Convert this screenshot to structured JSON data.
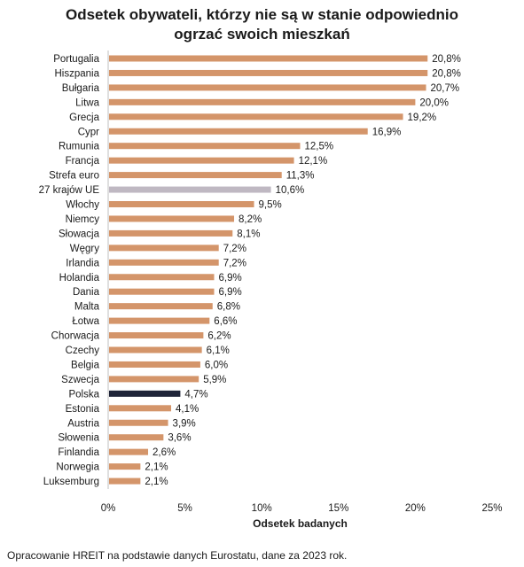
{
  "chart_data": {
    "type": "bar",
    "orientation": "horizontal",
    "title_line1": "Odsetek obywateli, którzy nie są w stanie odpowiednio",
    "title_line2": "ogrzać swoich mieszkań",
    "xlabel": "Odsetek badanych",
    "ylabel": "",
    "xlim": [
      0,
      25
    ],
    "xticks": [
      "0%",
      "5%",
      "10%",
      "15%",
      "20%",
      "25%"
    ],
    "grid": false,
    "categories": [
      "Portugalia",
      "Hiszpania",
      "Bułgaria",
      "Litwa",
      "Grecja",
      "Cypr",
      "Rumunia",
      "Francja",
      "Strefa euro",
      "27 krajów UE",
      "Włochy",
      "Niemcy",
      "Słowacja",
      "Węgry",
      "Irlandia",
      "Holandia",
      "Dania",
      "Malta",
      "Łotwa",
      "Chorwacja",
      "Czechy",
      "Belgia",
      "Szwecja",
      "Polska",
      "Estonia",
      "Austria",
      "Słowenia",
      "Finlandia",
      "Norwegia",
      "Luksemburg"
    ],
    "values": [
      20.8,
      20.8,
      20.7,
      20.0,
      19.2,
      16.9,
      12.5,
      12.1,
      11.3,
      10.6,
      9.5,
      8.2,
      8.1,
      7.2,
      7.2,
      6.9,
      6.9,
      6.8,
      6.6,
      6.2,
      6.1,
      6.0,
      5.9,
      4.7,
      4.1,
      3.9,
      3.6,
      2.6,
      2.1,
      2.1
    ],
    "value_labels": [
      "20,8%",
      "20,8%",
      "20,7%",
      "20,0%",
      "19,2%",
      "16,9%",
      "12,5%",
      "12,1%",
      "11,3%",
      "10,6%",
      "9,5%",
      "8,2%",
      "8,1%",
      "7,2%",
      "7,2%",
      "6,9%",
      "6,9%",
      "6,8%",
      "6,6%",
      "6,2%",
      "6,1%",
      "6,0%",
      "5,9%",
      "4,7%",
      "4,1%",
      "3,9%",
      "3,6%",
      "2,6%",
      "2,1%",
      "2,1%"
    ],
    "colors": {
      "default": "#D4956A",
      "highlight_eu": "#BFB8C2",
      "highlight_pl": "#1F2438"
    },
    "highlights": {
      "27 krajów UE": "highlight_eu",
      "Polska": "highlight_pl"
    }
  },
  "footer": {
    "source": "Opracowanie HREIT na podstawie danych Eurostatu, dane za 2023 rok."
  }
}
